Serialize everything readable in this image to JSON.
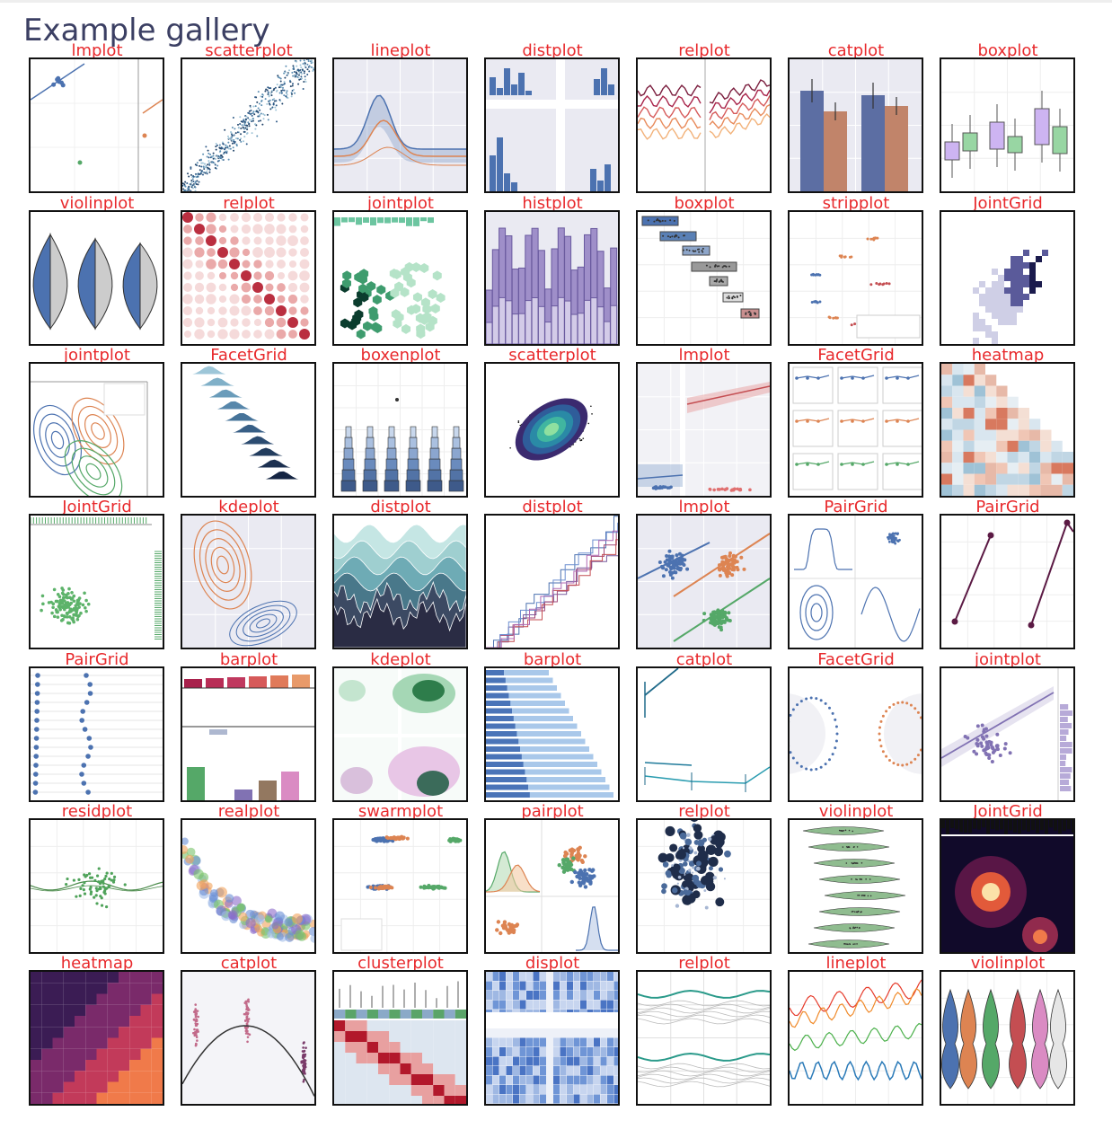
{
  "page": {
    "title": "Example gallery"
  },
  "gallery": {
    "items": [
      "lmplot",
      "scatterplot",
      "lineplot",
      "distplot",
      "relplot",
      "catplot",
      "boxplot",
      "violinplot",
      "relplot",
      "jointplot",
      "histplot",
      "boxplot",
      "stripplot",
      "JointGrid",
      "jointplot",
      "FacetGrid",
      "boxenplot",
      "scatterplot",
      "lmplot",
      "FacetGrid",
      "heatmap",
      "JointGrid",
      "kdeplot",
      "distplot",
      "distplot",
      "lmplot",
      "PairGrid",
      "PairGrid",
      "PairGrid",
      "barplot",
      "kdeplot",
      "barplot",
      "catplot",
      "FacetGrid",
      "jointplot",
      "residplot",
      "realplot",
      "swarmplot",
      "pairplot",
      "relplot",
      "violinplot",
      "JointGrid",
      "heatmap",
      "catplot",
      "clusterplot",
      "displot",
      "relplot",
      "lineplot",
      "violinplot"
    ]
  }
}
